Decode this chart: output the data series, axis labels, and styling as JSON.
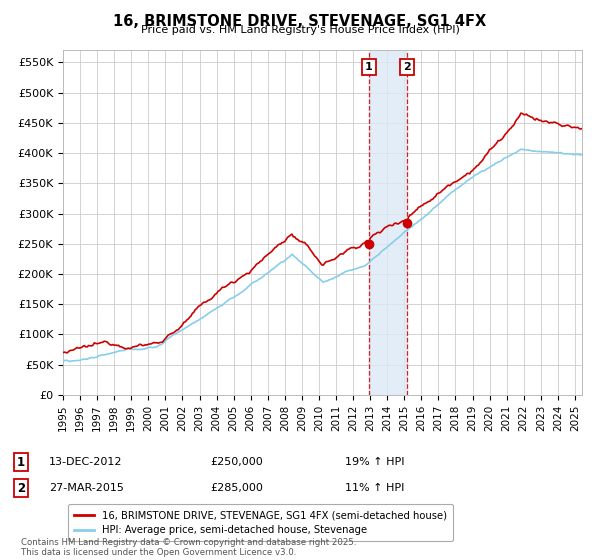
{
  "title": "16, BRIMSTONE DRIVE, STEVENAGE, SG1 4FX",
  "subtitle": "Price paid vs. HM Land Registry's House Price Index (HPI)",
  "ylabel_ticks": [
    "£0",
    "£50K",
    "£100K",
    "£150K",
    "£200K",
    "£250K",
    "£300K",
    "£350K",
    "£400K",
    "£450K",
    "£500K",
    "£550K"
  ],
  "ytick_values": [
    0,
    50000,
    100000,
    150000,
    200000,
    250000,
    300000,
    350000,
    400000,
    450000,
    500000,
    550000
  ],
  "ylim": [
    0,
    570000
  ],
  "red_color": "#cc0000",
  "blue_color": "#87CEEB",
  "marker1_price": 250000,
  "marker2_price": 285000,
  "marker1_date_str": "13-DEC-2012",
  "marker2_date_str": "27-MAR-2015",
  "marker1_hpi_pct": "19% ↑ HPI",
  "marker2_hpi_pct": "11% ↑ HPI",
  "legend1": "16, BRIMSTONE DRIVE, STEVENAGE, SG1 4FX (semi-detached house)",
  "legend2": "HPI: Average price, semi-detached house, Stevenage",
  "footnote": "Contains HM Land Registry data © Crown copyright and database right 2025.\nThis data is licensed under the Open Government Licence v3.0.",
  "bg_color": "#ffffff",
  "grid_color": "#cccccc",
  "shaded_color": "#dce9f5"
}
